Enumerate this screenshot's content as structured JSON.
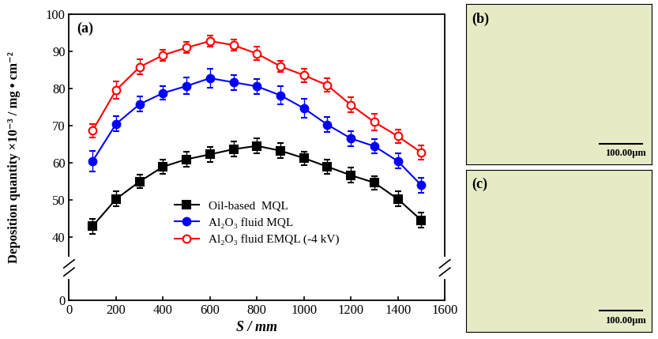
{
  "chart_data": {
    "type": "line",
    "panel_label": "(a)",
    "x_label": "S / mm",
    "y_label": "Deposition quantity ×10⁻³ / mg • cm⁻²",
    "x": [
      100,
      200,
      300,
      400,
      500,
      600,
      700,
      800,
      900,
      1000,
      1100,
      1200,
      1300,
      1400,
      1500
    ],
    "xlim": [
      0,
      1600
    ],
    "xticks": [
      0,
      200,
      400,
      600,
      800,
      1000,
      1200,
      1400,
      1600
    ],
    "ylim": [
      35,
      100
    ],
    "yticks": [
      40,
      50,
      60,
      70,
      80,
      90,
      100
    ],
    "ylim_lower": [
      0,
      5
    ],
    "yticks_lower": [
      0
    ],
    "legend": "lower center",
    "series": [
      {
        "name": "Oil-based  MQL",
        "color": "#000000",
        "marker": "square",
        "values": [
          43.0,
          50.3,
          55.0,
          59.0,
          61.0,
          62.3,
          63.7,
          64.6,
          63.3,
          61.3,
          59.0,
          56.7,
          54.7,
          50.3,
          44.6
        ],
        "errors": [
          2.0,
          2.0,
          1.8,
          2.0,
          2.0,
          2.0,
          2.0,
          2.0,
          2.0,
          1.8,
          2.0,
          2.0,
          1.8,
          2.0,
          2.0
        ]
      },
      {
        "name": "Al₂O₃ fluid MQL",
        "color": "#0000ff",
        "marker": "circle",
        "values": [
          60.5,
          70.5,
          75.8,
          78.8,
          80.7,
          82.8,
          81.7,
          80.6,
          78.2,
          74.7,
          70.3,
          66.6,
          64.5,
          60.5,
          54.0
        ],
        "errors": [
          2.8,
          2.0,
          2.0,
          1.8,
          2.2,
          2.5,
          2.0,
          2.0,
          2.5,
          2.5,
          2.0,
          2.0,
          2.0,
          2.0,
          2.0
        ]
      },
      {
        "name": "Al₂O₃ fluid EMQL (-4 kV)",
        "color": "#ff0000",
        "marker": "open_circle",
        "values": [
          68.7,
          79.6,
          85.8,
          89.0,
          91.0,
          92.8,
          91.7,
          89.4,
          86.0,
          83.6,
          80.9,
          75.6,
          71.0,
          67.2,
          62.8
        ],
        "errors": [
          1.8,
          2.3,
          2.0,
          1.5,
          1.5,
          1.5,
          1.5,
          1.8,
          1.5,
          1.8,
          1.8,
          2.0,
          2.2,
          1.8,
          2.0
        ]
      }
    ]
  },
  "images": [
    {
      "label": "(b)",
      "scale_bar": "100.00μm"
    },
    {
      "label": "(c)",
      "scale_bar": "100.00μm"
    }
  ]
}
